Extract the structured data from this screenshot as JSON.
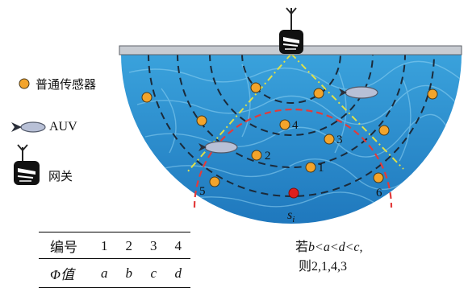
{
  "legend": {
    "sensor_label": "普通传感器",
    "auv_label": "AUV",
    "gateway_label": "网关"
  },
  "nodes": [
    {
      "id": "1",
      "label": "1"
    },
    {
      "id": "2",
      "label": "2"
    },
    {
      "id": "3",
      "label": "3"
    },
    {
      "id": "4",
      "label": "4"
    },
    {
      "id": "5",
      "label": "5"
    },
    {
      "id": "6",
      "label": "6"
    }
  ],
  "sink": {
    "label_main": "s",
    "label_sub": "i"
  },
  "table": {
    "header": [
      "编号",
      "1",
      "2",
      "3",
      "4"
    ],
    "row": [
      "Φ值",
      "a",
      "b",
      "c",
      "d"
    ]
  },
  "rule": {
    "line1_prefix": "若",
    "line1_expr": "b<a<d<c,",
    "line2": "则2,1,4,3"
  },
  "colors": {
    "water": "#2f8fd0",
    "sensor": "#f3a42b",
    "sink": "#e01e1e",
    "red_arc": "#e23b3b",
    "yellow_line": "#dfe04a"
  }
}
